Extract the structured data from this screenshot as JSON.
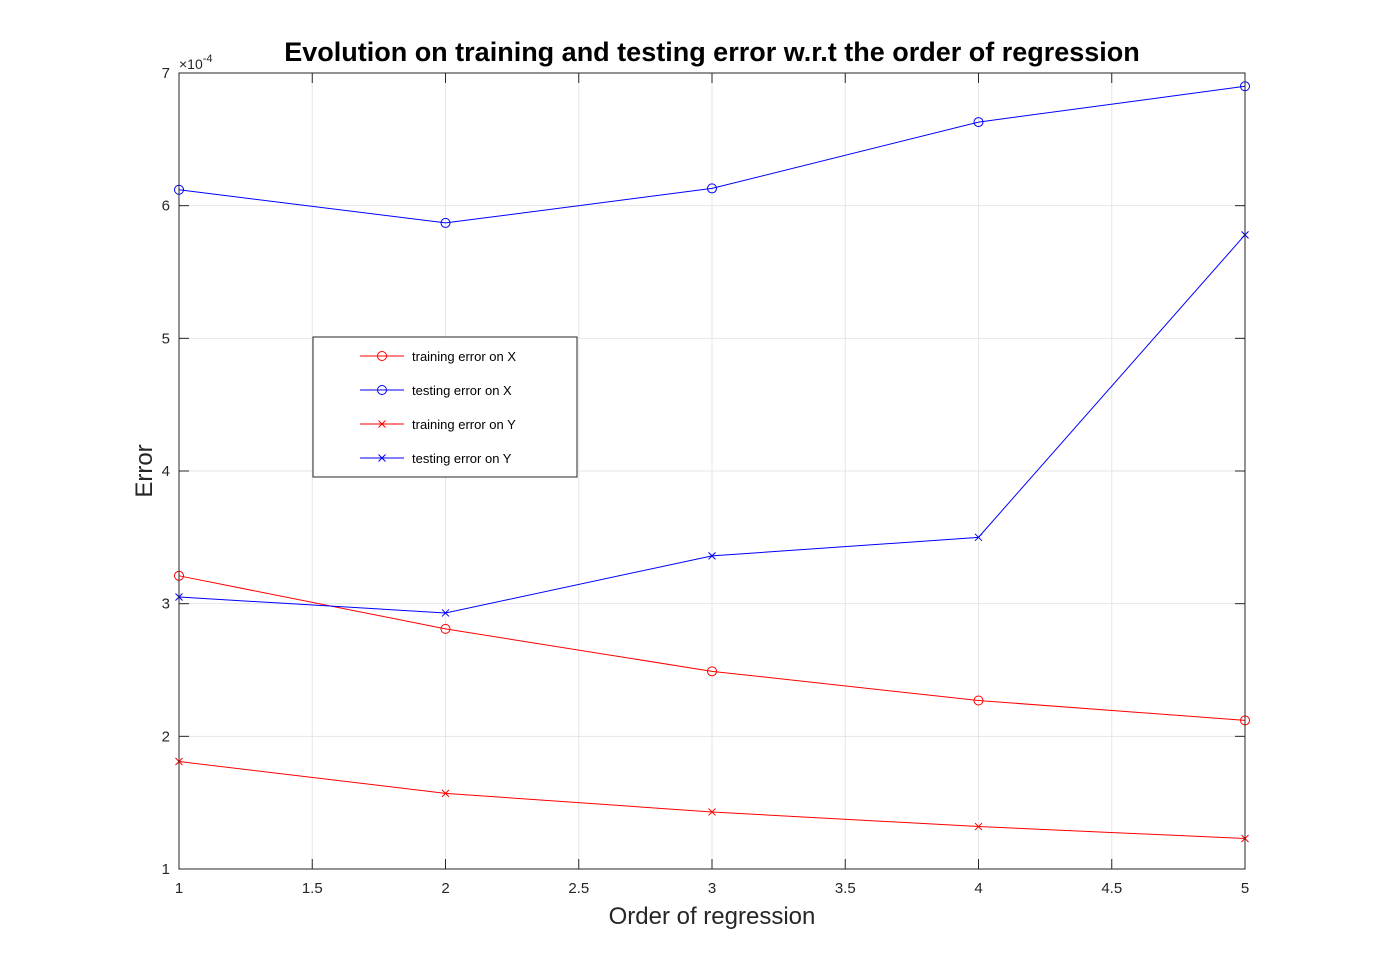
{
  "chart_data": {
    "type": "line",
    "title": "Evolution on training and testing error w.r.t the order of regression",
    "xlabel": "Order of regression",
    "ylabel": "Error",
    "xlim": [
      1,
      5
    ],
    "ylim": [
      1,
      7
    ],
    "x_ticks": [
      "1",
      "1.5",
      "2",
      "2.5",
      "3",
      "3.5",
      "4",
      "4.5",
      "5"
    ],
    "y_ticks": [
      "1",
      "2",
      "3",
      "4",
      "5",
      "6",
      "7"
    ],
    "y_exponent_prefix": "×10",
    "y_exponent": "-4",
    "grid": true,
    "legend_position": "center-left",
    "x": [
      1,
      2,
      3,
      4,
      5
    ],
    "series": [
      {
        "name": "training error on X",
        "values": [
          3.21,
          2.81,
          2.49,
          2.27,
          2.12
        ],
        "color": "#ff0000",
        "marker": "circle"
      },
      {
        "name": "testing error on X",
        "values": [
          6.12,
          5.87,
          6.13,
          6.63,
          6.9
        ],
        "color": "#0000ff",
        "marker": "circle"
      },
      {
        "name": "training error on Y",
        "values": [
          1.81,
          1.57,
          1.43,
          1.32,
          1.23
        ],
        "color": "#ff0000",
        "marker": "x"
      },
      {
        "name": "testing error on Y",
        "values": [
          3.05,
          2.93,
          3.36,
          3.5,
          5.78
        ],
        "color": "#0000ff",
        "marker": "x"
      }
    ]
  }
}
